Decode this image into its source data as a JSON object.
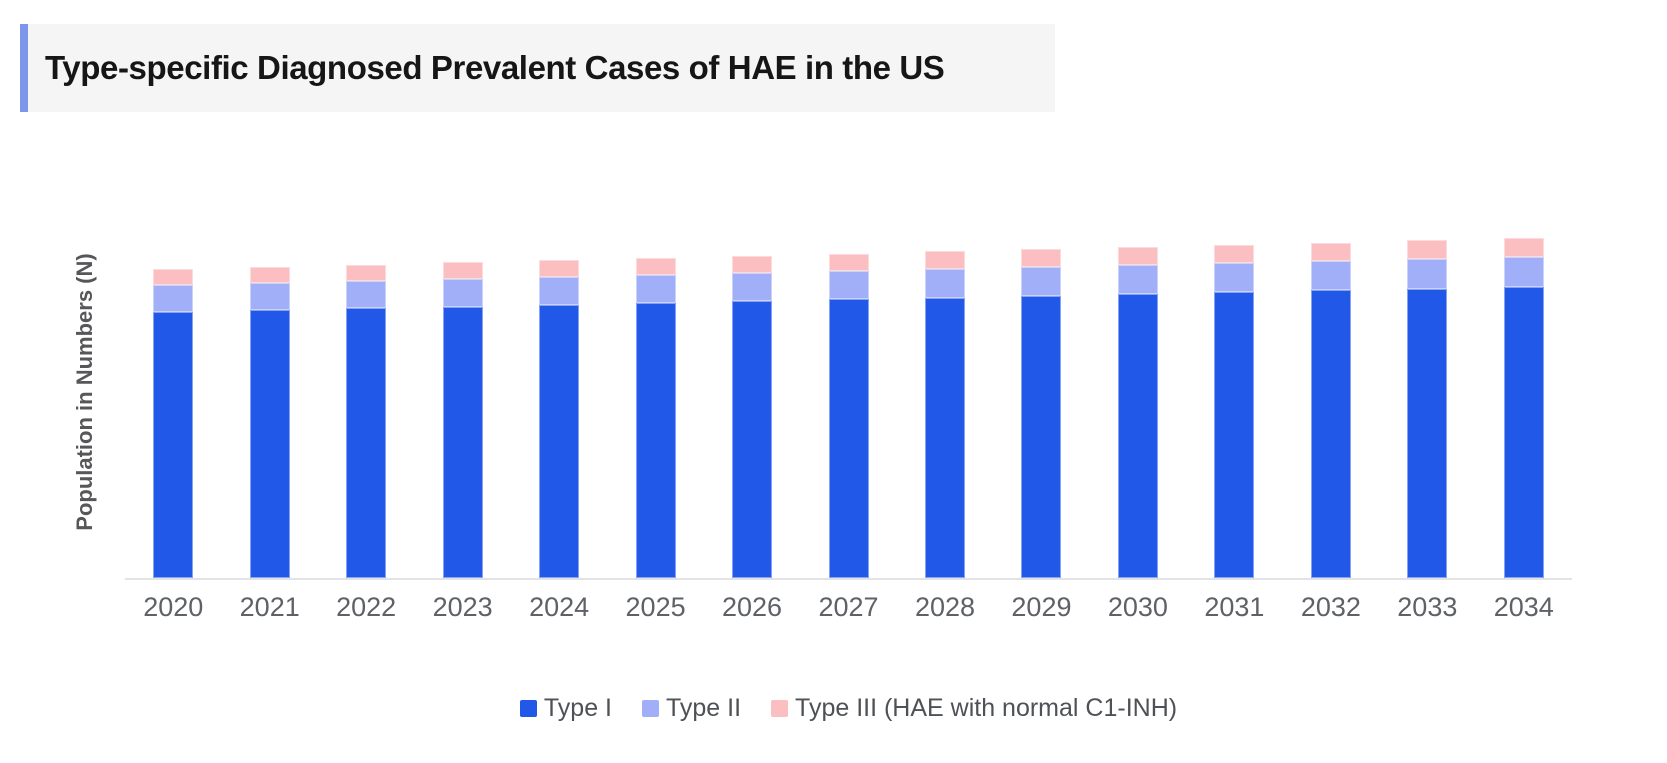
{
  "header": {
    "title": "Type-specific Diagnosed Prevalent Cases of HAE in the US",
    "accent_color": "#7d96eb",
    "background_color": "#f5f5f6"
  },
  "chart_data": {
    "type": "bar",
    "stacked": true,
    "title": "Type-specific Diagnosed Prevalent Cases of HAE in the US",
    "xlabel": "",
    "ylabel": "Population in Numbers (N)",
    "categories": [
      "2020",
      "2021",
      "2022",
      "2023",
      "2024",
      "2025",
      "2026",
      "2027",
      "2028",
      "2029",
      "2030",
      "2031",
      "2032",
      "2033",
      "2034"
    ],
    "series": [
      {
        "name": "Type I",
        "color": "#2158e8",
        "values": [
          5320,
          5356,
          5392,
          5428,
          5464,
          5500,
          5536,
          5572,
          5608,
          5644,
          5680,
          5716,
          5752,
          5788,
          5824
        ]
      },
      {
        "name": "Type II",
        "color": "#a0aff8",
        "values": [
          540,
          544,
          548,
          552,
          556,
          560,
          564,
          568,
          572,
          576,
          580,
          584,
          588,
          592,
          596
        ]
      },
      {
        "name": "Type III (HAE with normal C1-INH)",
        "color": "#fbbec1",
        "values": [
          320,
          324,
          328,
          332,
          336,
          340,
          344,
          348,
          352,
          356,
          360,
          364,
          368,
          372,
          376
        ]
      }
    ],
    "ylim": [
      0,
      7200
    ],
    "y_tick_labels_shown": false,
    "grid": false,
    "legend_position": "bottom",
    "axis_line_color": "#e3e3e5",
    "note": "Values estimated from bar pixel heights; y-axis shows no numeric ticks"
  }
}
